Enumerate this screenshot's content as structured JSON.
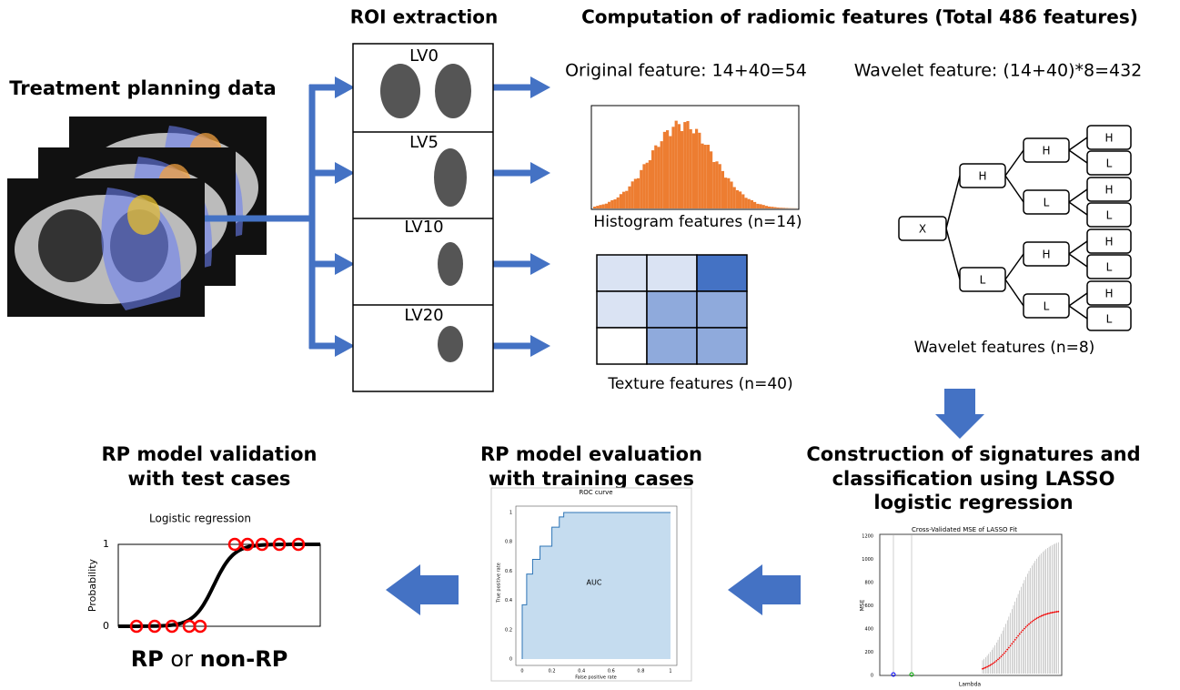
{
  "planning": {
    "title": "Treatment planning data"
  },
  "roi": {
    "title": "ROI extraction",
    "levels": [
      "LV0",
      "LV5",
      "LV10",
      "LV20"
    ]
  },
  "features": {
    "title": "Computation of radiomic features (Total 486 features)",
    "original": "Original feature: 14+40=54",
    "wavelet": "Wavelet feature: (14+40)*8=432",
    "histogram": "Histogram features (n=14)",
    "texture": "Texture features (n=40)",
    "wavelet_caption": "Wavelet features (n=8)"
  },
  "wavelet_tree": {
    "nodes": [
      "X",
      "H",
      "L",
      "H",
      "L",
      "H",
      "L",
      "H",
      "L",
      "H",
      "L",
      "H",
      "L",
      "H",
      "L"
    ]
  },
  "lasso": {
    "title": [
      "Construction of signatures and",
      "classification using LASSO",
      "logistic regression"
    ],
    "plot_title": "Cross-Validated MSE of LASSO Fit",
    "x_label": "Lambda",
    "y_label": "MSE",
    "yticks": [
      "0",
      "200",
      "400",
      "600",
      "800",
      "1000",
      "1200"
    ]
  },
  "evaluation": {
    "title": [
      "RP model evaluation",
      "with training cases"
    ],
    "plot_title": "ROC curve",
    "x_label": "False positive rate",
    "y_label": "True positive rate",
    "area_label": "AUC",
    "xticks": [
      "0",
      "0.2",
      "0.4",
      "0.6",
      "0.8",
      "1"
    ],
    "yticks": [
      "0",
      "0.2",
      "0.4",
      "0.6",
      "0.8",
      "1"
    ]
  },
  "validation": {
    "title": [
      "RP model validation",
      "with test cases"
    ],
    "plot_title": "Logistic regression",
    "y_label": "Probability",
    "yticks": [
      "0",
      "1"
    ],
    "result": {
      "positive": "RP",
      "joiner": "or",
      "negative": "non-RP"
    }
  }
}
